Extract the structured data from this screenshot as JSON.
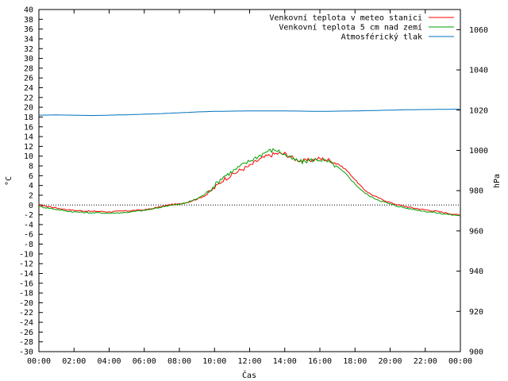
{
  "chart_data": {
    "type": "line",
    "xlabel": "Čas",
    "ylabel_left": "°C",
    "ylabel_right": "hPa",
    "x_ticks": [
      "00:00",
      "02:00",
      "04:00",
      "06:00",
      "08:00",
      "10:00",
      "12:00",
      "14:00",
      "16:00",
      "18:00",
      "20:00",
      "22:00",
      "00:00"
    ],
    "x_range_hours": [
      0,
      24
    ],
    "ylim_left": [
      -30,
      40
    ],
    "y_ticks_left": [
      40,
      38,
      36,
      34,
      32,
      30,
      28,
      26,
      24,
      22,
      20,
      18,
      16,
      14,
      12,
      10,
      8,
      6,
      4,
      2,
      0,
      -2,
      -4,
      -6,
      -8,
      -10,
      -12,
      -14,
      -16,
      -18,
      -20,
      -22,
      -24,
      -26,
      -28,
      -30
    ],
    "ylim_right": [
      900,
      1070
    ],
    "y_ticks_right": [
      1060,
      1040,
      1020,
      1000,
      980,
      960,
      940,
      920,
      900
    ],
    "grid": true,
    "legend_position": "top-right",
    "series": [
      {
        "name": "Venkovní teplota v meteo stanici",
        "axis": "left",
        "color": "#ff0000",
        "x": [
          0,
          0.5,
          1,
          1.5,
          2,
          2.5,
          3,
          3.5,
          4,
          4.5,
          5,
          5.5,
          6,
          6.5,
          7,
          7.5,
          8,
          8.5,
          9,
          9.5,
          10,
          10.5,
          11,
          11.5,
          12,
          12.5,
          13,
          13.5,
          14,
          14.5,
          15,
          15.5,
          16,
          16.5,
          17,
          17.5,
          18,
          18.5,
          19,
          19.5,
          20,
          20.5,
          21,
          21.5,
          22,
          22.5,
          23,
          23.5,
          24
        ],
        "values": [
          0,
          -0.3,
          -0.6,
          -0.9,
          -1.1,
          -1.2,
          -1.3,
          -1.3,
          -1.4,
          -1.3,
          -1.2,
          -1.1,
          -1,
          -0.7,
          -0.3,
          0.1,
          0.2,
          0.6,
          1.2,
          2,
          3.5,
          5.2,
          6.2,
          7.2,
          8,
          9.2,
          10,
          10.5,
          10.5,
          9.5,
          9,
          9.2,
          9.5,
          9.2,
          8.5,
          7.2,
          5.2,
          3.2,
          2,
          1.2,
          0.5,
          0,
          -0.4,
          -0.7,
          -1,
          -1.2,
          -1.5,
          -1.8,
          -2.1
        ]
      },
      {
        "name": "Venkovní teplota 5 cm nad zemí",
        "axis": "left",
        "color": "#00a000",
        "x": [
          0,
          0.5,
          1,
          1.5,
          2,
          2.5,
          3,
          3.5,
          4,
          4.5,
          5,
          5.5,
          6,
          6.5,
          7,
          7.5,
          8,
          8.5,
          9,
          9.5,
          10,
          10.5,
          11,
          11.5,
          12,
          12.5,
          13,
          13.5,
          14,
          14.5,
          15,
          15.5,
          16,
          16.5,
          17,
          17.5,
          18,
          18.5,
          19,
          19.5,
          20,
          20.5,
          21,
          21.5,
          22,
          22.5,
          23,
          23.5,
          24
        ],
        "values": [
          -0.3,
          -0.6,
          -0.9,
          -1.2,
          -1.4,
          -1.5,
          -1.6,
          -1.6,
          -1.7,
          -1.6,
          -1.5,
          -1.3,
          -1.1,
          -0.8,
          -0.4,
          0,
          0.1,
          0.6,
          1.3,
          2.3,
          4,
          5.8,
          6.8,
          8,
          9,
          10,
          11,
          11.3,
          10.3,
          9.3,
          8.8,
          9.2,
          9.3,
          8.8,
          7.8,
          6.3,
          4.3,
          2.6,
          1.5,
          0.8,
          0.2,
          -0.3,
          -0.7,
          -1,
          -1.3,
          -1.5,
          -1.8,
          -2,
          -2.2
        ]
      },
      {
        "name": "Atmosférický tlak",
        "axis": "right",
        "color": "#0070c0",
        "x": [
          0,
          1,
          2,
          3,
          4,
          5,
          6,
          7,
          8,
          9,
          10,
          11,
          12,
          13,
          14,
          15,
          16,
          17,
          18,
          19,
          20,
          21,
          22,
          23,
          24
        ],
        "values": [
          1017.5,
          1017.6,
          1017.5,
          1017.3,
          1017.5,
          1017.7,
          1018,
          1018.3,
          1018.7,
          1019.1,
          1019.4,
          1019.5,
          1019.6,
          1019.6,
          1019.6,
          1019.5,
          1019.4,
          1019.5,
          1019.6,
          1019.8,
          1020,
          1020.2,
          1020.3,
          1020.4,
          1020.5
        ]
      }
    ]
  }
}
